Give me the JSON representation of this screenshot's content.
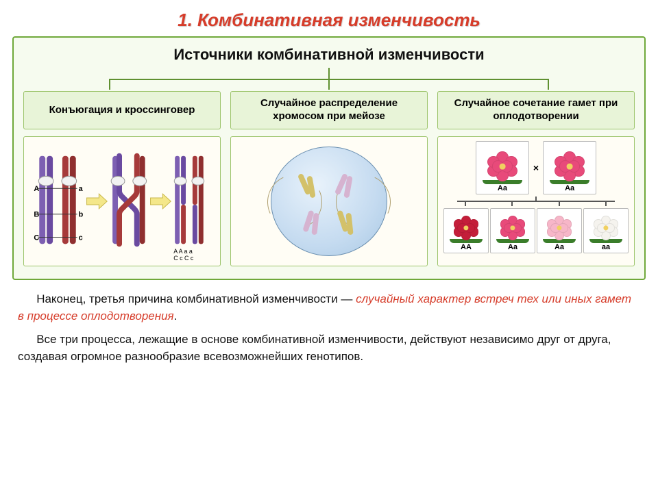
{
  "title": {
    "text": "1. Комбинативная изменчивость",
    "color": "#d63c2a"
  },
  "diagram": {
    "border_color": "#6fa83a",
    "bg_color": "#f6fbef",
    "header": {
      "text": "Источники комбинативной изменчивости",
      "color": "#111111"
    },
    "tree": {
      "line_color": "#5f9030",
      "hbar_width_pct": 72,
      "drop_positions_pct": [
        0,
        50,
        100
      ]
    },
    "branches": [
      {
        "label": "Конъюгация и кроссинговер",
        "label_bg": "#e8f4d8",
        "label_border": "#9cc46a",
        "image_border": "#9cc46a",
        "image_type": "crossover",
        "crossover": {
          "chromatid_colors": [
            "#7d5fb2",
            "#8f2f2f",
            "#6a4aa0",
            "#a63a3a"
          ],
          "centromere_color": "#f2f2f2",
          "marker_letters_left": [
            "A",
            "B",
            "C"
          ],
          "marker_letters_right": [
            "a",
            "b",
            "c"
          ],
          "arrow_color": "#f4e78a"
        }
      },
      {
        "label": "Случайное распределение хромосом при мейозе",
        "label_bg": "#e8f4d8",
        "label_border": "#9cc46a",
        "image_border": "#9cc46a",
        "image_type": "meiosis",
        "meiosis": {
          "cell_fill_outer": "#a8c8e4",
          "cell_fill_inner": "#e8f2fb",
          "cell_border": "#6a8fb0",
          "spindle_color": "#b0a070",
          "chrom_colors": [
            "#d3c16a",
            "#d6b3d0",
            "#d3c16a",
            "#d6b3d0"
          ]
        }
      },
      {
        "label": "Случайное сочетание гамет при оплодотворении",
        "label_bg": "#e8f4d8",
        "label_border": "#9cc46a",
        "image_border": "#9cc46a",
        "image_type": "flowers",
        "flowers": {
          "parents": [
            {
              "genotype": "Aa",
              "color": "#e84a7a"
            },
            {
              "genotype": "Aa",
              "color": "#e84a7a"
            }
          ],
          "cross_symbol": "×",
          "offspring": [
            {
              "genotype": "AA",
              "color": "#c41e3a"
            },
            {
              "genotype": "Aa",
              "color": "#e84a7a"
            },
            {
              "genotype": "Aa",
              "color": "#f7b6c8"
            },
            {
              "genotype": "aa",
              "color": "#f5f3ee"
            }
          ],
          "leaf_color": "#3a7d2a",
          "connector_color": "#555555"
        }
      }
    ]
  },
  "paragraphs": {
    "p1_prefix": "Наконец, третья причина комбинативной изменчивости — ",
    "p1_highlight": "случайный характер встреч тех или иных гамет в процессе оплодотворения",
    "p1_suffix": ".",
    "p2": "Все три процесса, лежащие в основе комбинативной изменчивости, действуют независимо друг от друга, создавая огромное разнообразие всевозможнейших генотипов.",
    "text_color": "#111111",
    "highlight_color": "#d63c2a"
  }
}
